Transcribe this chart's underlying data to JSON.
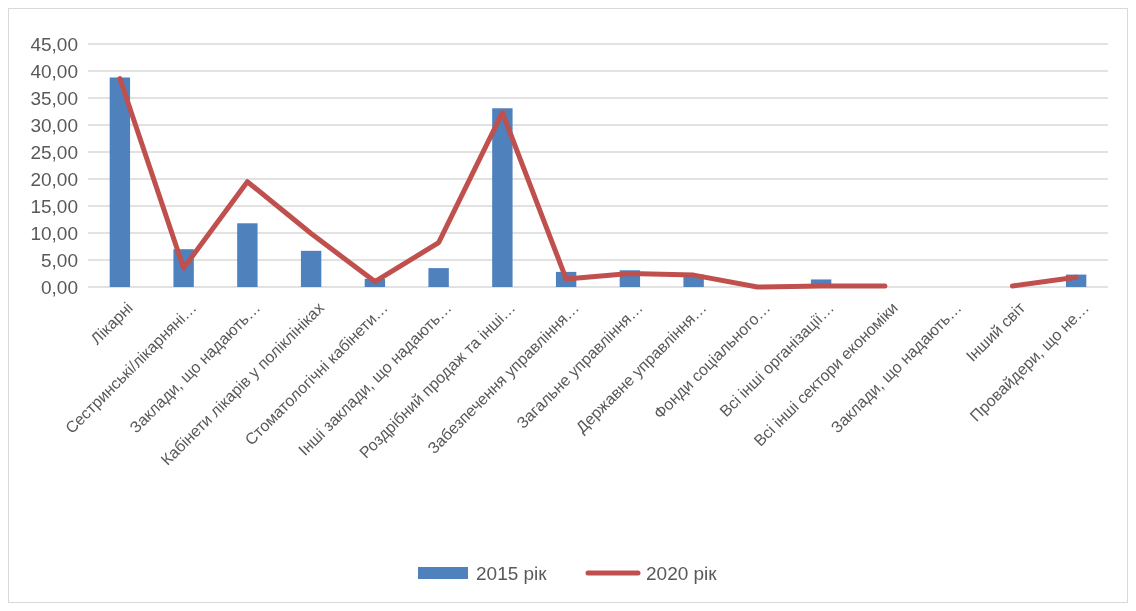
{
  "chart_data": {
    "type": "bar",
    "categories": [
      "Лікарні",
      "Сестринські/лікарняні…",
      "Заклади, що надають…",
      "Кабінети лікарів у поліклініках",
      "Стоматологічні кабінети…",
      "Інші заклади, що надають…",
      "Роздрібний продаж та інші…",
      "Забезпечення управління…",
      "Загальне управління…",
      "Державне управління…",
      "Фонди соціального…",
      "Всі інші організації…",
      "Всі інші сектори економіки",
      "Заклади, що надають…",
      "Інший світ",
      "Провайдери, що не…"
    ],
    "series": [
      {
        "name": "2015 рік",
        "color": "#4f81bd",
        "values": [
          38.8,
          7.0,
          11.8,
          6.7,
          1.5,
          3.5,
          33.1,
          2.8,
          3.1,
          2.3,
          0,
          1.4,
          0,
          null,
          null,
          2.3
        ]
      },
      {
        "name": "2020 рік",
        "type": "line",
        "color": "#c0504d",
        "values": [
          38.6,
          3.5,
          19.5,
          9.9,
          1.0,
          8.2,
          32.3,
          1.5,
          2.5,
          2.2,
          0,
          0.2,
          0.2,
          null,
          0.2,
          1.8
        ]
      }
    ],
    "ylim": [
      0,
      45
    ],
    "yticks": [
      {
        "value": 0,
        "label": "0,00"
      },
      {
        "value": 5,
        "label": "5,00"
      },
      {
        "value": 10,
        "label": "10,00"
      },
      {
        "value": 15,
        "label": "15,00"
      },
      {
        "value": 20,
        "label": "20,00"
      },
      {
        "value": 25,
        "label": "25,00"
      },
      {
        "value": 30,
        "label": "30,00"
      },
      {
        "value": 35,
        "label": "35,00"
      },
      {
        "value": 40,
        "label": "40,00"
      },
      {
        "value": 45,
        "label": "45,00"
      }
    ],
    "grid": "y",
    "legend": "bottom"
  }
}
